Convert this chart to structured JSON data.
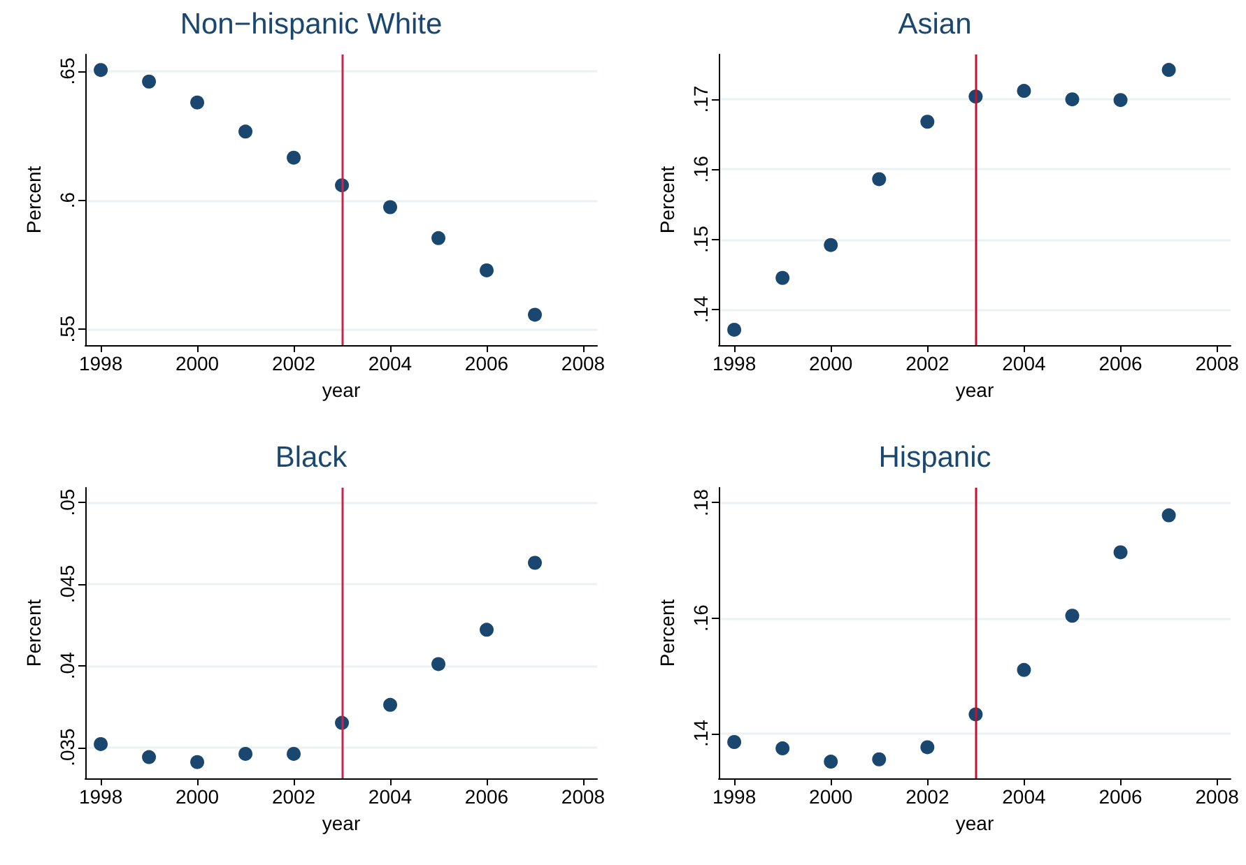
{
  "chart_data": [
    {
      "type": "scatter",
      "title": "Non−hispanic White",
      "xlabel": "year",
      "ylabel": "Percent",
      "x": [
        1998,
        1999,
        2000,
        2001,
        2002,
        2003,
        2004,
        2005,
        2006,
        2007
      ],
      "series": [
        {
          "color": "#1a476f",
          "values": [
            0.6505,
            0.646,
            0.6379,
            0.6266,
            0.6165,
            0.6058,
            0.5973,
            0.5853,
            0.5728,
            0.5556
          ]
        }
      ],
      "xlim": [
        1997.68,
        2008.29
      ],
      "xticks": [
        1998,
        2000,
        2002,
        2004,
        2006,
        2008
      ],
      "ylim": [
        0.5438,
        0.6565
      ],
      "yticks": [
        {
          "value": 0.55,
          "label": ".55"
        },
        {
          "value": 0.6,
          "label": ".6"
        },
        {
          "value": 0.65,
          "label": ".65"
        }
      ],
      "ref_lines": [
        {
          "axis": "x",
          "value": 2003,
          "color": "#c8254f"
        }
      ],
      "grid": "y",
      "marker": "circle"
    },
    {
      "type": "scatter",
      "title": "Asian",
      "xlabel": "year",
      "ylabel": "Percent",
      "x": [
        1998,
        1999,
        2000,
        2001,
        2002,
        2003,
        2004,
        2005,
        2006,
        2007
      ],
      "series": [
        {
          "color": "#1a476f",
          "values": [
            0.1371,
            0.1445,
            0.1492,
            0.1586,
            0.1668,
            0.1704,
            0.1712,
            0.17,
            0.1699,
            0.1742
          ]
        }
      ],
      "xlim": [
        1997.68,
        2008.28
      ],
      "xticks": [
        1998,
        2000,
        2002,
        2004,
        2006,
        2008
      ],
      "ylim": [
        0.1349,
        0.1764
      ],
      "yticks": [
        {
          "value": 0.14,
          "label": ".14"
        },
        {
          "value": 0.15,
          "label": ".15"
        },
        {
          "value": 0.16,
          "label": ".16"
        },
        {
          "value": 0.17,
          "label": ".17"
        }
      ],
      "ref_lines": [
        {
          "axis": "x",
          "value": 2003,
          "color": "#c8102e"
        }
      ],
      "grid": "y",
      "marker": "circle"
    },
    {
      "type": "scatter",
      "title": "Black",
      "xlabel": "year",
      "ylabel": "Percent",
      "x": [
        1998,
        1999,
        2000,
        2001,
        2002,
        2003,
        2004,
        2005,
        2006,
        2007
      ],
      "series": [
        {
          "color": "#1a476f",
          "values": [
            0.0352,
            0.0344,
            0.0341,
            0.0346,
            0.0346,
            0.0365,
            0.0376,
            0.0401,
            0.0422,
            0.0463
          ]
        }
      ],
      "xlim": [
        1997.68,
        2008.29
      ],
      "xticks": [
        1998,
        2000,
        2002,
        2004,
        2006,
        2008
      ],
      "ylim": [
        0.0331,
        0.0509
      ],
      "yticks": [
        {
          "value": 0.035,
          "label": ".035"
        },
        {
          "value": 0.04,
          "label": ".04"
        },
        {
          "value": 0.045,
          "label": ".045"
        },
        {
          "value": 0.05,
          "label": ".05"
        }
      ],
      "ref_lines": [
        {
          "axis": "x",
          "value": 2003,
          "color": "#c8254f"
        }
      ],
      "grid": "y",
      "marker": "circle"
    },
    {
      "type": "scatter",
      "title": "Hispanic",
      "xlabel": "year",
      "ylabel": "Percent",
      "x": [
        1998,
        1999,
        2000,
        2001,
        2002,
        2003,
        2004,
        2005,
        2006,
        2007
      ],
      "series": [
        {
          "color": "#1a476f",
          "values": [
            0.1385,
            0.1374,
            0.1351,
            0.1355,
            0.1376,
            0.1433,
            0.151,
            0.1604,
            0.1714,
            0.1778
          ]
        }
      ],
      "xlim": [
        1997.68,
        2008.28
      ],
      "xticks": [
        1998,
        2000,
        2002,
        2004,
        2006,
        2008
      ],
      "ylim": [
        0.1322,
        0.1826
      ],
      "yticks": [
        {
          "value": 0.14,
          "label": ".14"
        },
        {
          "value": 0.16,
          "label": ".16"
        },
        {
          "value": 0.18,
          "label": ".18"
        }
      ],
      "ref_lines": [
        {
          "axis": "x",
          "value": 2003,
          "color": "#c8102e"
        }
      ],
      "grid": "y",
      "marker": "circle"
    }
  ]
}
